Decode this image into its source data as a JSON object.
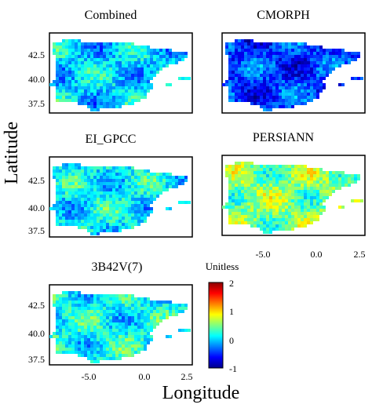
{
  "figure": {
    "ylabel": "Latitude",
    "xlabel": "Longitude",
    "colorbar": {
      "title": "Unitless",
      "min": -1,
      "max": 2,
      "ticks": [
        "2",
        "1",
        "0",
        "-1"
      ]
    },
    "lat_tick_labels": [
      "42.5",
      "40.0",
      "37.5"
    ],
    "lon_tick_labels": [
      "-5.0",
      "0.0",
      "2.5"
    ],
    "colors": {
      "map_low": "#0000cd",
      "map_high": "#ff0000",
      "frame": "#000000"
    }
  },
  "chart_data": [
    {
      "type": "heatmap",
      "title": "Combined",
      "xlim": [
        -9.5,
        3.5
      ],
      "ylim": [
        36,
        44.5
      ],
      "mean_value": 0.0,
      "color_range": [
        -1,
        2
      ],
      "show_lat_ticks": true,
      "show_lon_ticks": false
    },
    {
      "type": "heatmap",
      "title": "CMORPH",
      "xlim": [
        -9.5,
        3.5
      ],
      "ylim": [
        36,
        44.5
      ],
      "mean_value": -0.45,
      "color_range": [
        -1,
        2
      ],
      "show_lat_ticks": false,
      "show_lon_ticks": false
    },
    {
      "type": "heatmap",
      "title": "EI_GPCC",
      "xlim": [
        -9.5,
        3.5
      ],
      "ylim": [
        36,
        44.5
      ],
      "mean_value": 0.1,
      "color_range": [
        -1,
        2
      ],
      "show_lat_ticks": true,
      "show_lon_ticks": false
    },
    {
      "type": "heatmap",
      "title": "PERSIANN",
      "xlim": [
        -9.5,
        3.5
      ],
      "ylim": [
        36,
        44.5
      ],
      "mean_value": 0.5,
      "color_range": [
        -1,
        2
      ],
      "show_lat_ticks": false,
      "show_lon_ticks": true
    },
    {
      "type": "heatmap",
      "title": "3B42V(7)",
      "xlim": [
        -9.5,
        3.5
      ],
      "ylim": [
        36,
        44.5
      ],
      "mean_value": 0.15,
      "color_range": [
        -1,
        2
      ],
      "show_lat_ticks": true,
      "show_lon_ticks": true
    }
  ]
}
